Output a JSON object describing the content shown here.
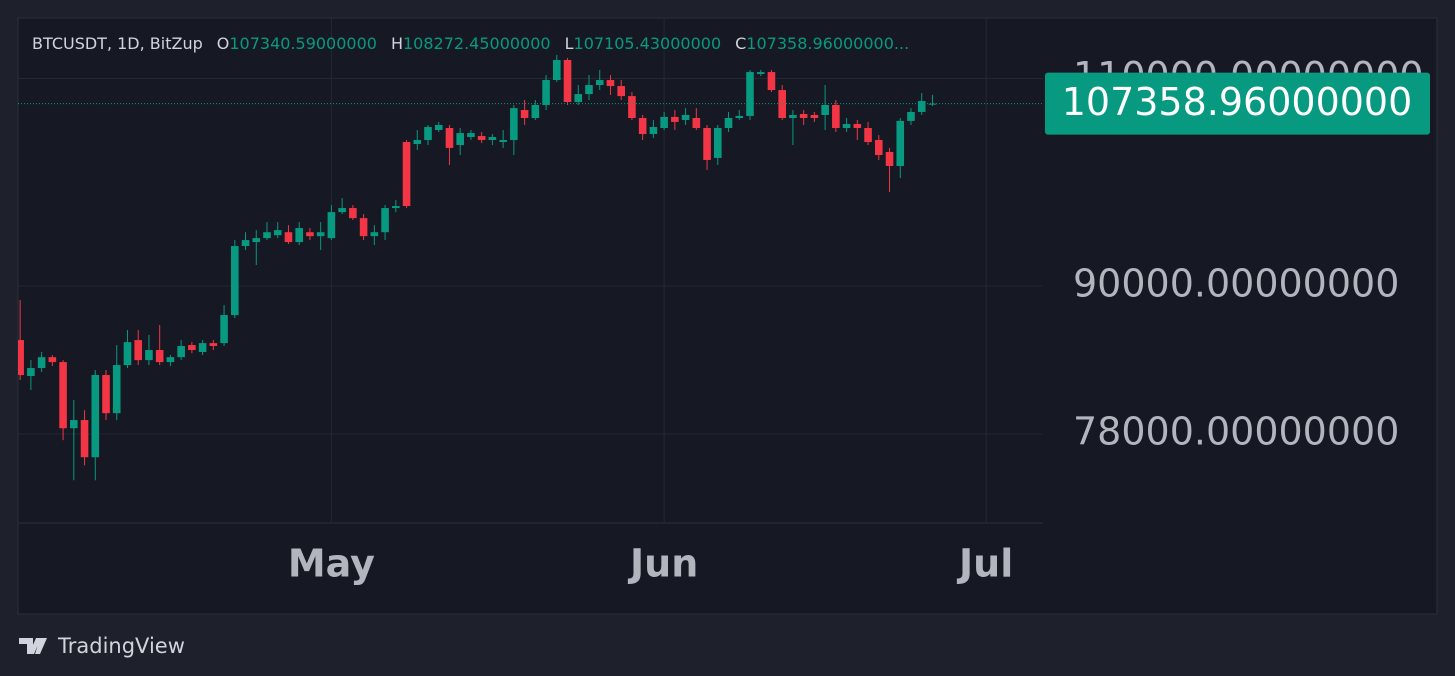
{
  "chart_data": {
    "type": "candlestick",
    "header": {
      "symbol": "BTCUSDT, 1D, BitZup",
      "prefixes": [
        "O",
        "H",
        "L",
        "C"
      ],
      "value_labels": [
        "107340.59000000",
        "108272.45000000",
        "107105.43000000",
        "107358.96000000..."
      ]
    },
    "x": [
      0,
      1,
      2,
      3,
      4,
      5,
      6,
      7,
      8,
      9,
      10,
      11,
      12,
      13,
      14,
      15,
      16,
      17,
      18,
      19,
      20,
      21,
      22,
      23,
      24,
      25,
      26,
      27,
      28,
      29,
      30,
      31,
      32,
      33,
      34,
      35,
      36,
      37,
      38,
      39,
      40,
      41,
      42,
      43,
      44,
      45,
      46,
      47,
      48,
      49,
      50,
      51,
      52,
      53,
      54,
      55,
      56,
      57,
      58,
      59,
      60,
      61,
      62,
      63,
      64,
      65,
      66,
      67,
      68,
      69,
      70,
      71,
      72,
      73,
      74,
      75,
      76,
      77,
      78,
      79,
      80,
      81,
      82,
      83,
      84,
      85
    ],
    "open": [
      85420,
      82500,
      83140,
      84020,
      83620,
      78440,
      79060,
      76270,
      82580,
      79590,
      83380,
      85420,
      83780,
      84600,
      83620,
      84020,
      85010,
      84440,
      85170,
      85170,
      87510,
      93550,
      93910,
      94270,
      94540,
      94810,
      93910,
      94810,
      94450,
      94270,
      96670,
      97050,
      96110,
      94450,
      94810,
      97050,
      103450,
      103250,
      103650,
      104660,
      104860,
      103150,
      103950,
      104050,
      103650,
      103450,
      103650,
      106700,
      105880,
      107220,
      109840,
      111990,
      107530,
      108360,
      109310,
      109840,
      109200,
      108150,
      105880,
      104250,
      104860,
      105990,
      105680,
      105880,
      104860,
      101870,
      104860,
      105880,
      106090,
      110480,
      110690,
      108780,
      105880,
      106290,
      106190,
      106190,
      107220,
      104860,
      105270,
      104860,
      103650,
      102460,
      101080,
      105580,
      106500,
      107340.59
    ],
    "high": [
      88790,
      83780,
      84440,
      84190,
      83780,
      80600,
      79820,
      82980,
      82980,
      85010,
      86250,
      86250,
      85840,
      86670,
      84190,
      85420,
      85250,
      85420,
      85420,
      88360,
      94090,
      94810,
      95000,
      95740,
      95740,
      95460,
      95740,
      95190,
      95740,
      97330,
      97990,
      97330,
      96490,
      95460,
      97330,
      97800,
      103650,
      104660,
      105170,
      105480,
      105170,
      104860,
      104660,
      104460,
      104250,
      104660,
      107220,
      107740,
      107740,
      110370,
      112530,
      112210,
      109310,
      110370,
      110910,
      110370,
      109840,
      108570,
      106190,
      105680,
      106500,
      106700,
      106900,
      106900,
      105170,
      105170,
      106500,
      106700,
      110910,
      110910,
      110910,
      109310,
      106700,
      106700,
      106500,
      109310,
      107740,
      105880,
      105680,
      105480,
      104150,
      102860,
      105880,
      106900,
      108470,
      108272.45
    ],
    "low": [
      82180,
      81390,
      82820,
      83300,
      77540,
      74590,
      75680,
      74590,
      79060,
      79060,
      83140,
      83380,
      83380,
      83380,
      83300,
      83780,
      84350,
      84190,
      84600,
      84930,
      87260,
      93190,
      91850,
      94090,
      94270,
      93730,
      93640,
      94090,
      93190,
      94090,
      96490,
      95930,
      94090,
      93640,
      94090,
      96670,
      97050,
      102660,
      103150,
      104460,
      101180,
      102160,
      103650,
      103350,
      103150,
      102860,
      102160,
      105170,
      105680,
      106700,
      109630,
      107220,
      107220,
      107740,
      108780,
      108260,
      107740,
      105680,
      103650,
      103850,
      104660,
      104660,
      105170,
      104660,
      100690,
      101180,
      104460,
      105680,
      105680,
      110260,
      108570,
      105680,
      103150,
      105170,
      105480,
      104660,
      104460,
      104460,
      103650,
      103150,
      101670,
      98570,
      99910,
      105170,
      106190,
      107105.43
    ],
    "close": [
      82580,
      83140,
      84020,
      83620,
      78440,
      79060,
      76270,
      82580,
      79590,
      83380,
      85250,
      83780,
      84600,
      83620,
      84020,
      84930,
      84600,
      85170,
      84930,
      87510,
      93550,
      94090,
      94270,
      94810,
      95000,
      93910,
      95190,
      94450,
      94810,
      96670,
      97050,
      96110,
      94450,
      94810,
      97050,
      97240,
      97240,
      103650,
      104960,
      105170,
      102860,
      104350,
      104350,
      103650,
      103950,
      103650,
      106900,
      105880,
      107220,
      109840,
      111990,
      107530,
      108360,
      109310,
      109840,
      109200,
      108150,
      105880,
      104250,
      104960,
      105990,
      105480,
      106190,
      104860,
      101670,
      104860,
      105880,
      106090,
      110690,
      110690,
      108780,
      105880,
      106190,
      105880,
      105880,
      107220,
      104860,
      105270,
      104860,
      103450,
      102160,
      101080,
      105580,
      106500,
      107640,
      107358.96
    ],
    "up_color": "#089981",
    "down_color": "#f23645",
    "last_price": 107358.96,
    "last_price_label": "107358.96000000",
    "log_scale": true,
    "grid": true,
    "xlim": [
      -0.2,
      95.3
    ],
    "xticks": [
      {
        "value": 29,
        "label": "May"
      },
      {
        "value": 60,
        "label": "Jun"
      },
      {
        "value": 90,
        "label": "Jul"
      }
    ],
    "ylim": [
      71570,
      116630
    ],
    "yticks": [
      {
        "value": 78000,
        "label": "78000.00000000"
      },
      {
        "value": 90000,
        "label": "90000.00000000"
      },
      {
        "value": 110000,
        "label": "110000.00000000"
      }
    ]
  },
  "footer": {
    "brand": "TradingView"
  }
}
